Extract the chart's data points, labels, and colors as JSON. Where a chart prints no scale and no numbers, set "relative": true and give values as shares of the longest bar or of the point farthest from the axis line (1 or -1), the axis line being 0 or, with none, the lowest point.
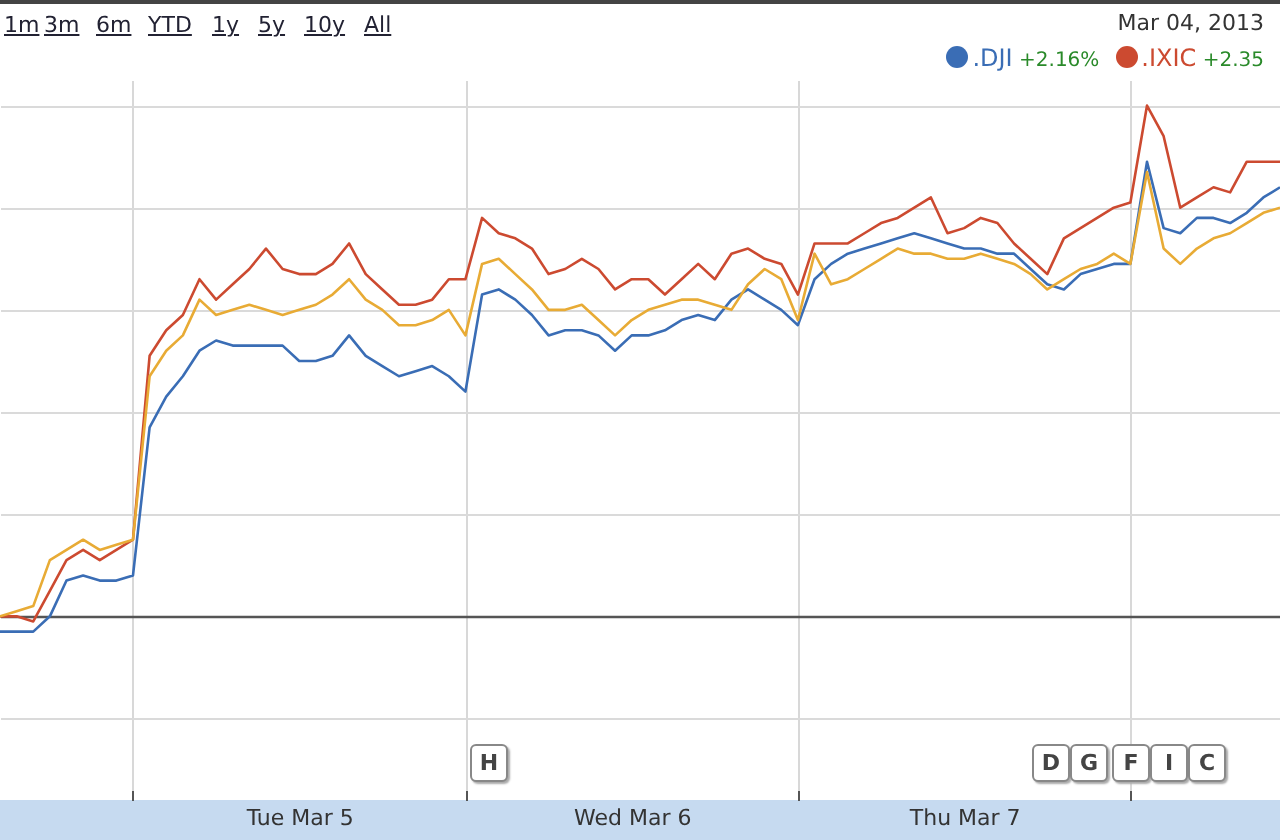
{
  "chart_data": {
    "type": "line",
    "relative": true,
    "grid": true,
    "legend": "top right",
    "annotations": [
      "1m",
      "3m",
      "6m",
      "YTD",
      "1y",
      "5y",
      "10y",
      "All",
      "Mar 04, 2013",
      "+2.16%",
      "+2.35",
      "H",
      "D",
      "G",
      "F",
      "I",
      "C"
    ],
    "categories": [
      null,
      null,
      null,
      null,
      null,
      null,
      null,
      null,
      null,
      null,
      null,
      null,
      null,
      null,
      null,
      null,
      null,
      null,
      "Tue Mar 5",
      null,
      null,
      null,
      null,
      null,
      null,
      null,
      null,
      null,
      null,
      null,
      null,
      null,
      null,
      null,
      null,
      null,
      null,
      null,
      "Wed Mar 6",
      null,
      null,
      null,
      null,
      null,
      null,
      null,
      null,
      null,
      null,
      null,
      null,
      null,
      null,
      null,
      null,
      null,
      null,
      null,
      "Thu Mar 7",
      null,
      null,
      null,
      null,
      null,
      null,
      null,
      null,
      null,
      null,
      null,
      null,
      null,
      null,
      null,
      null,
      null,
      null,
      null
    ],
    "series": [
      {
        "name": ".DJI",
        "color": "#3a6db5",
        "values": [
          -0.03,
          -0.03,
          -0.03,
          0.0,
          0.07,
          0.08,
          0.07,
          0.07,
          0.08,
          0.37,
          0.43,
          0.47,
          0.52,
          0.54,
          0.53,
          0.53,
          0.53,
          0.53,
          0.5,
          0.5,
          0.51,
          0.55,
          0.51,
          0.49,
          0.47,
          0.48,
          0.49,
          0.47,
          0.44,
          0.63,
          0.64,
          0.62,
          0.59,
          0.55,
          0.56,
          0.56,
          0.55,
          0.52,
          0.55,
          0.55,
          0.56,
          0.58,
          0.59,
          0.58,
          0.62,
          0.64,
          0.62,
          0.6,
          0.57,
          0.66,
          0.69,
          0.71,
          0.72,
          0.73,
          0.74,
          0.75,
          0.74,
          0.73,
          0.72,
          0.72,
          0.71,
          0.71,
          0.68,
          0.65,
          0.64,
          0.67,
          0.68,
          0.69,
          0.69,
          0.89,
          0.76,
          0.75,
          0.78,
          0.78,
          0.77,
          0.79,
          0.82,
          0.84
        ]
      },
      {
        "name": ".IXIC",
        "color": "#cc4a30",
        "values": [
          0.0,
          0.0,
          -0.01,
          0.05,
          0.11,
          0.13,
          0.11,
          0.13,
          0.15,
          0.51,
          0.56,
          0.59,
          0.66,
          0.62,
          0.65,
          0.68,
          0.72,
          0.68,
          0.67,
          0.67,
          0.69,
          0.73,
          0.67,
          0.64,
          0.61,
          0.61,
          0.62,
          0.66,
          0.66,
          0.78,
          0.75,
          0.74,
          0.72,
          0.67,
          0.68,
          0.7,
          0.68,
          0.64,
          0.66,
          0.66,
          0.63,
          0.66,
          0.69,
          0.66,
          0.71,
          0.72,
          0.7,
          0.69,
          0.63,
          0.73,
          0.73,
          0.73,
          0.75,
          0.77,
          0.78,
          0.8,
          0.82,
          0.75,
          0.76,
          0.78,
          0.77,
          0.73,
          0.7,
          0.67,
          0.74,
          0.76,
          0.78,
          0.8,
          0.81,
          1.0,
          0.94,
          0.8,
          0.82,
          0.84,
          0.83,
          0.89,
          0.89,
          0.89
        ]
      },
      {
        "color": "#e8ab35",
        "values": [
          0.0,
          0.01,
          0.02,
          0.11,
          0.13,
          0.15,
          0.13,
          0.14,
          0.15,
          0.47,
          0.52,
          0.55,
          0.62,
          0.59,
          0.6,
          0.61,
          0.6,
          0.59,
          0.6,
          0.61,
          0.63,
          0.66,
          0.62,
          0.6,
          0.57,
          0.57,
          0.58,
          0.6,
          0.55,
          0.69,
          0.7,
          0.67,
          0.64,
          0.6,
          0.6,
          0.61,
          0.58,
          0.55,
          0.58,
          0.6,
          0.61,
          0.62,
          0.62,
          0.61,
          0.6,
          0.65,
          0.68,
          0.66,
          0.58,
          0.71,
          0.65,
          0.66,
          0.68,
          0.7,
          0.72,
          0.71,
          0.71,
          0.7,
          0.7,
          0.71,
          0.7,
          0.69,
          0.67,
          0.64,
          0.66,
          0.68,
          0.69,
          0.71,
          0.69,
          0.87,
          0.72,
          0.69,
          0.72,
          0.74,
          0.75,
          0.77,
          0.79,
          0.8
        ]
      }
    ]
  }
}
